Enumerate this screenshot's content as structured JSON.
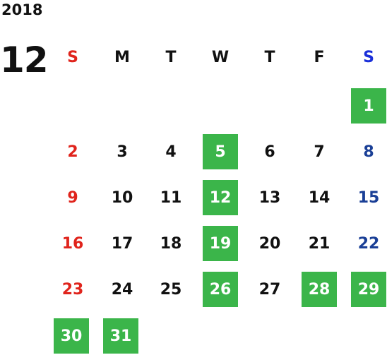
{
  "year": "2018",
  "month": "12",
  "colors": {
    "sunday": "#e0241c",
    "saturday": "#1a3f96",
    "saturday_header": "#1a2fd9",
    "highlight": "#3bb54a"
  },
  "weekdays": [
    "S",
    "M",
    "T",
    "W",
    "T",
    "F",
    "S"
  ],
  "weeks": [
    [
      "",
      "",
      "",
      "",
      "",
      "",
      "1"
    ],
    [
      "2",
      "3",
      "4",
      "5",
      "6",
      "7",
      "8"
    ],
    [
      "9",
      "10",
      "11",
      "12",
      "13",
      "14",
      "15"
    ],
    [
      "16",
      "17",
      "18",
      "19",
      "20",
      "21",
      "22"
    ],
    [
      "23",
      "24",
      "25",
      "26",
      "27",
      "28",
      "29"
    ],
    [
      "30",
      "31",
      "",
      "",
      "",
      "",
      ""
    ]
  ],
  "highlighted_days": [
    "1",
    "5",
    "12",
    "19",
    "26",
    "28",
    "29",
    "30",
    "31"
  ]
}
